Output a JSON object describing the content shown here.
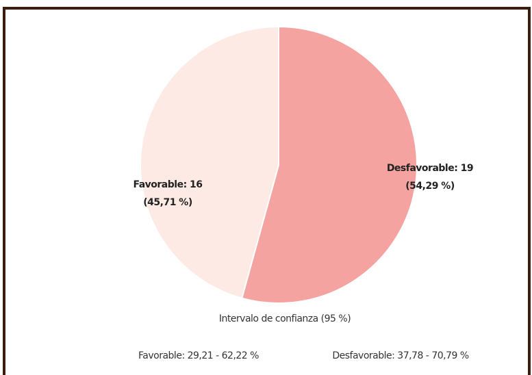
{
  "chart_data": {
    "type": "pie",
    "categories": [
      "Desfavorable",
      "Favorable"
    ],
    "values": [
      19,
      16
    ],
    "value_labels": [
      "Desfavorable: 19",
      "Favorable: 16"
    ],
    "percent_labels": [
      "(54,29 %)",
      "(45,71 %)"
    ],
    "colors": [
      "#f4a3a0",
      "#fdeae4"
    ],
    "annotations": [
      "Intervalo de confianza (95 %)",
      "Favorable: 29,21 - 62,22 %",
      "Desfavorable: 37,78 - 70,79 %"
    ]
  }
}
